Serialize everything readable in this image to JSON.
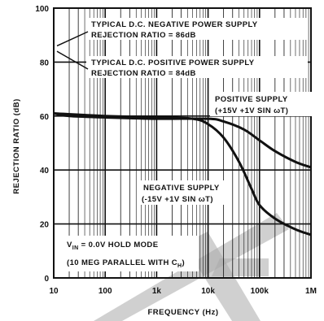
{
  "chart_data": {
    "type": "line",
    "xlabel": "FREQUENCY (Hz)",
    "ylabel": "REJECTION RATIO (dB)",
    "x_scale": "log",
    "xlim": [
      10,
      1000000
    ],
    "ylim": [
      0,
      100
    ],
    "grid": true,
    "x_ticks": [
      10,
      100,
      1000,
      10000,
      100000,
      1000000
    ],
    "x_tick_labels": [
      "10",
      "100",
      "1k",
      "10k",
      "100k",
      "1M"
    ],
    "y_ticks": [
      0,
      20,
      40,
      60,
      80,
      100
    ],
    "y_tick_labels": [
      "0",
      "20",
      "40",
      "60",
      "80",
      "100"
    ],
    "series": [
      {
        "name": "POSITIVE SUPPLY (+15V +1V SIN ωT)",
        "x": [
          10,
          20,
          100,
          1000,
          10000,
          20000,
          50000,
          100000,
          200000,
          500000,
          1000000
        ],
        "y": [
          61,
          60,
          59.5,
          59,
          59,
          58,
          55,
          51,
          47,
          43,
          41
        ]
      },
      {
        "name": "NEGATIVE SUPPLY (-15V +1V SIN ωT)",
        "x": [
          10,
          100,
          1000,
          5000,
          10000,
          20000,
          40000,
          70000,
          100000,
          200000,
          500000,
          1000000
        ],
        "y": [
          61,
          60,
          59.5,
          59,
          57,
          52,
          43,
          33,
          27,
          22,
          18,
          16
        ]
      }
    ],
    "annotations": [
      {
        "text": "TYPICAL D.C. NEGATIVE POWER SUPPLY",
        "text2": "REJECTION RATIO = 86dB",
        "value": 86
      },
      {
        "text": "TYPICAL D.C. POSITIVE POWER SUPPLY",
        "text2": "REJECTION RATIO = 84dB",
        "value": 84
      },
      {
        "text": "POSITIVE SUPPLY",
        "text2": "(+15V +1V SIN ωT)"
      },
      {
        "text": "NEGATIVE SUPPLY",
        "text2": "(-15V +1V SIN ωT)"
      },
      {
        "text": "V",
        "sub": "IN",
        "tail": " = 0.0V HOLD MODE",
        "text2": "(10 MEG PARALLEL WITH C",
        "sub2": "H",
        "tail2": ")"
      }
    ],
    "watermark_color": "#a9a9a9"
  }
}
